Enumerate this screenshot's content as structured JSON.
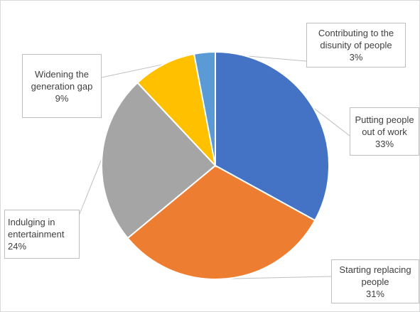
{
  "chart_data": {
    "type": "pie",
    "start_angle_deg": 0,
    "direction": "clockwise",
    "legend": "none",
    "slices": [
      {
        "label": "Putting people\nout of work",
        "value": 33,
        "value_text": "33%",
        "color": "#4472C4"
      },
      {
        "label": "Starting replacing\npeople",
        "value": 31,
        "value_text": "31%",
        "color": "#ED7D31"
      },
      {
        "label": "Indulging in\nentertainment",
        "value": 24,
        "value_text": "24%",
        "color": "#A5A5A5"
      },
      {
        "label": "Widening the\ngeneration gap",
        "value": 9,
        "value_text": "9%",
        "color": "#FFC000"
      },
      {
        "label": "Contributing to the\ndisunity of people",
        "value": 3,
        "value_text": "3%",
        "color": "#5B9BD5"
      }
    ]
  }
}
